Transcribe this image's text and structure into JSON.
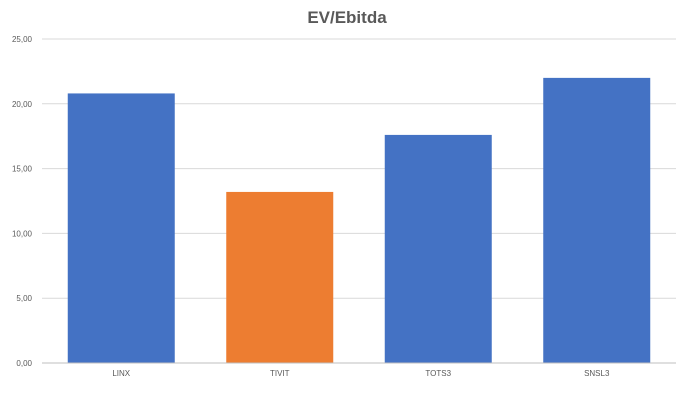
{
  "chart_data": {
    "type": "bar",
    "title": "EV/Ebitda",
    "categories": [
      "LINX",
      "TIVIT",
      "TOTS3",
      "SNSL3"
    ],
    "values": [
      20.8,
      13.2,
      17.6,
      22.0
    ],
    "bar_colors": [
      "#4472c4",
      "#ed7d31",
      "#4472c4",
      "#4472c4"
    ],
    "ylim": [
      0,
      25
    ],
    "yticks": [
      "0,00",
      "5,00",
      "10,00",
      "15,00",
      "20,00",
      "25,00"
    ],
    "ytick_values": [
      0,
      5,
      10,
      15,
      20,
      25
    ],
    "grid": true,
    "legend": "none",
    "xlabel": "",
    "ylabel": ""
  }
}
